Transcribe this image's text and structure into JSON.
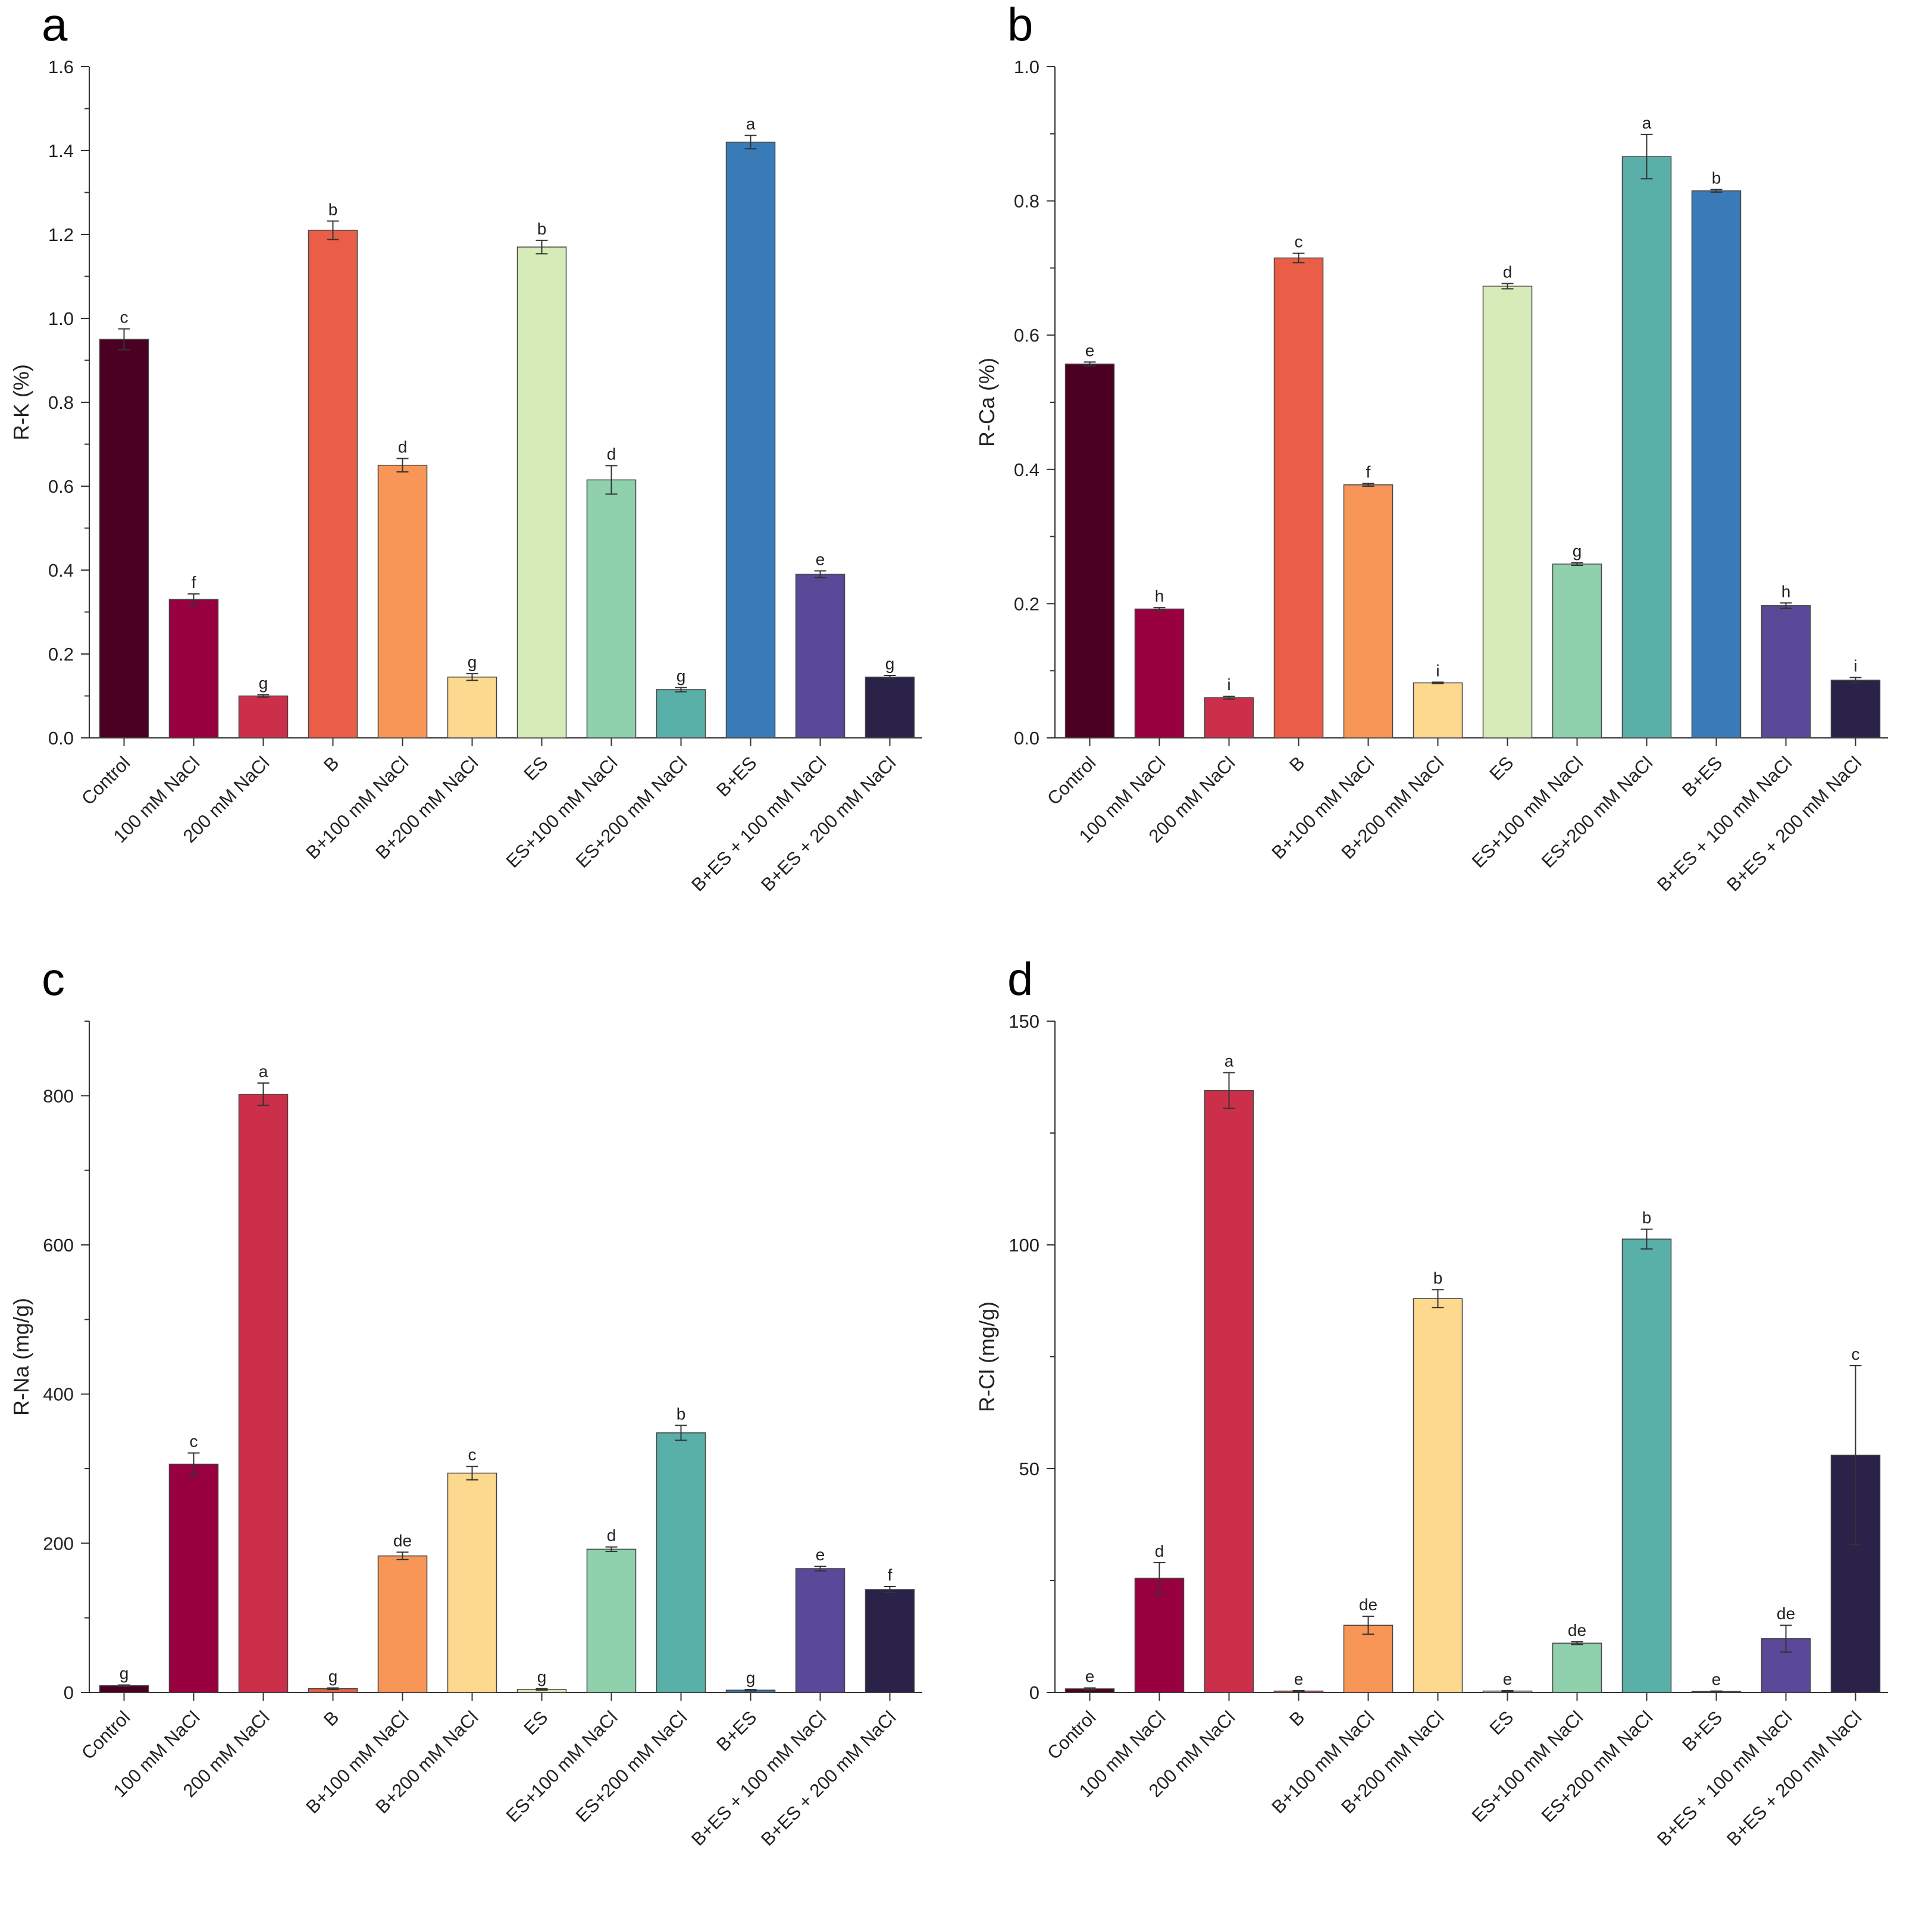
{
  "chart_data": [
    {
      "panel": "a",
      "type": "bar",
      "title": "",
      "xlabel": "",
      "ylabel": "R-K (%)",
      "ylim": [
        0,
        1.6
      ],
      "yticks": [
        "0.0",
        "0.2",
        "0.4",
        "0.6",
        "0.8",
        "1.0",
        "1.2",
        "1.4",
        "1.6"
      ],
      "categories": [
        "Control",
        "100 mM NaCl",
        "200 mM NaCl",
        "B",
        "B+100 mM NaCl",
        "B+200 mM NaCl",
        "ES",
        "ES+100 mM NaCl",
        "ES+200 mM NaCl",
        "B+ES",
        "B+ES + 100 mM NaCl",
        "B+ES + 200 mM NaCl"
      ],
      "values": [
        0.95,
        0.33,
        0.1,
        1.21,
        0.65,
        0.145,
        1.17,
        0.615,
        0.115,
        1.42,
        0.39,
        0.145
      ],
      "errors": [
        0.025,
        0.013,
        0.003,
        0.022,
        0.016,
        0.008,
        0.016,
        0.034,
        0.005,
        0.016,
        0.008,
        0.004
      ],
      "letters": [
        "c",
        "f",
        "g",
        "b",
        "d",
        "g",
        "b",
        "d",
        "g",
        "a",
        "e",
        "g"
      ]
    },
    {
      "panel": "b",
      "type": "bar",
      "title": "",
      "xlabel": "",
      "ylabel": "R-Ca (%)",
      "ylim": [
        0,
        1.0
      ],
      "yticks": [
        "0.0",
        "0.2",
        "0.4",
        "0.6",
        "0.8",
        "1.0"
      ],
      "categories": [
        "Control",
        "100 mM NaCl",
        "200 mM NaCl",
        "B",
        "B+100 mM NaCl",
        "B+200 mM NaCl",
        "ES",
        "ES+100 mM NaCl",
        "ES+200 mM NaCl",
        "B+ES",
        "B+ES + 100 mM NaCl",
        "B+ES + 200 mM NaCl"
      ],
      "values": [
        0.557,
        0.192,
        0.06,
        0.715,
        0.377,
        0.082,
        0.673,
        0.259,
        0.866,
        0.815,
        0.197,
        0.086
      ],
      "errors": [
        0.003,
        0.002,
        0.002,
        0.007,
        0.002,
        0.001,
        0.004,
        0.002,
        0.033,
        0.002,
        0.004,
        0.004
      ],
      "letters": [
        "e",
        "h",
        "i",
        "c",
        "f",
        "i",
        "d",
        "g",
        "a",
        "b",
        "h",
        "i"
      ]
    },
    {
      "panel": "c",
      "type": "bar",
      "title": "",
      "xlabel": "",
      "ylabel": "R-Na (mg/g)",
      "ylim": [
        0,
        900
      ],
      "yticks": [
        "0",
        "200",
        "400",
        "600",
        "800"
      ],
      "categories": [
        "Control",
        "100 mM NaCl",
        "200 mM NaCl",
        "B",
        "B+100 mM NaCl",
        "B+200 mM NaCl",
        "ES",
        "ES+100 mM NaCl",
        "ES+200 mM NaCl",
        "B+ES",
        "B+ES + 100 mM NaCl",
        "B+ES + 200 mM NaCl"
      ],
      "values": [
        9,
        306,
        802,
        5,
        183,
        294,
        4,
        192,
        348,
        3,
        166,
        138
      ],
      "errors": [
        1,
        15,
        15,
        1,
        5,
        9,
        1,
        3,
        10,
        1,
        3,
        4
      ],
      "letters": [
        "g",
        "c",
        "a",
        "g",
        "de",
        "c",
        "g",
        "d",
        "b",
        "g",
        "e",
        "f"
      ]
    },
    {
      "panel": "d",
      "type": "bar",
      "title": "",
      "xlabel": "",
      "ylabel": "R-Cl (mg/g)",
      "ylim": [
        0,
        150
      ],
      "yticks": [
        "0",
        "50",
        "100",
        "150"
      ],
      "categories": [
        "Control",
        "100 mM NaCl",
        "200 mM NaCl",
        "B",
        "B+100 mM NaCl",
        "B+200 mM NaCl",
        "ES",
        "ES+100 mM NaCl",
        "ES+200 mM NaCl",
        "B+ES",
        "B+ES + 100 mM NaCl",
        "B+ES + 200 mM NaCl"
      ],
      "values": [
        0.8,
        25.5,
        134.5,
        0.3,
        15,
        88,
        0.3,
        11,
        101.3,
        0.2,
        12,
        53
      ],
      "errors": [
        0.2,
        3.5,
        4,
        0.1,
        2,
        2,
        0.1,
        0.3,
        2.2,
        0.1,
        3,
        20
      ],
      "letters": [
        "e",
        "d",
        "a",
        "e",
        "de",
        "b",
        "e",
        "de",
        "b",
        "e",
        "de",
        "c"
      ]
    }
  ],
  "colors": [
    "#4a0022",
    "#990040",
    "#cc2f4a",
    "#ea5e48",
    "#f79656",
    "#fdd88f",
    "#d6ebb7",
    "#8fd0ad",
    "#59b0a8",
    "#397bb8",
    "#5a4898",
    "#2a2248"
  ]
}
